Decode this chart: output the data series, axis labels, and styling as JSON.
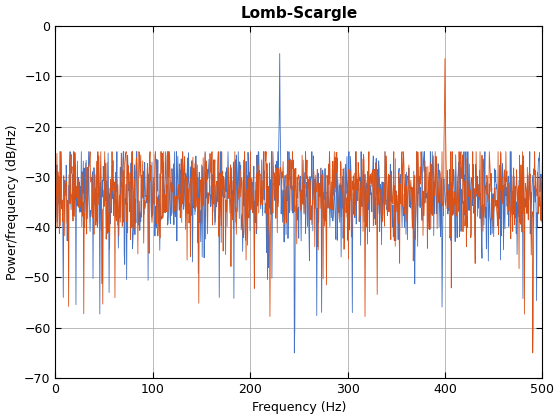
{
  "title": "Lomb-Scargle",
  "xlabel": "Frequency (Hz)",
  "ylabel": "Power/frequency (dB/Hz)",
  "xlim": [
    0,
    500
  ],
  "ylim": [
    -70,
    0
  ],
  "yticks": [
    0,
    -10,
    -20,
    -30,
    -40,
    -50,
    -60,
    -70
  ],
  "xticks": [
    0,
    100,
    200,
    300,
    400,
    500
  ],
  "line1_color": "#4472C4",
  "line2_color": "#D95319",
  "linewidth": 0.6,
  "grid_color": "#b0b0b0",
  "background_color": "#ffffff",
  "title_fontsize": 11,
  "label_fontsize": 9,
  "tick_fontsize": 9,
  "title_fontweight": "bold",
  "blue_peak_hz": 230,
  "orange_peak_hz": 400,
  "blue_dip1_hz": 245,
  "blue_dip2_hz": 305,
  "orange_dip_hz": 490,
  "n_points": 1000
}
